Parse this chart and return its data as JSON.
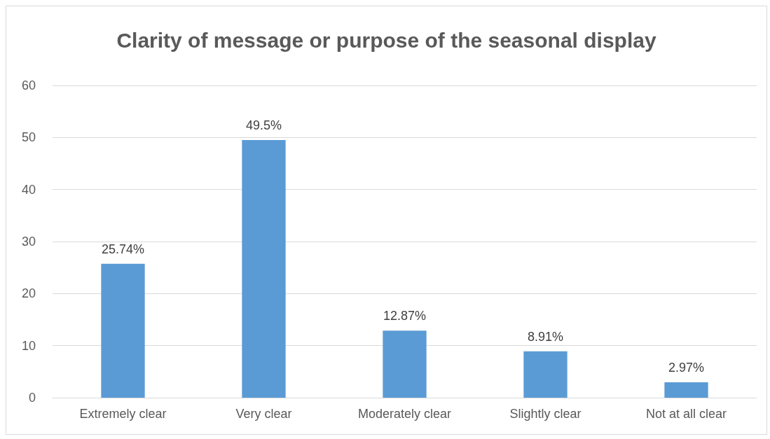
{
  "chart_data": {
    "type": "bar",
    "title": "Clarity of message or purpose of the seasonal display",
    "categories": [
      "Extremely clear",
      "Very clear",
      "Moderately clear",
      "Slightly clear",
      "Not at all clear"
    ],
    "values": [
      25.74,
      49.5,
      12.87,
      8.91,
      2.97
    ],
    "value_labels": [
      "25.74%",
      "49.5%",
      "12.87%",
      "8.91%",
      "2.97%"
    ],
    "color": "#5b9bd5",
    "ylim": [
      0,
      60
    ],
    "yticks": [
      0,
      10,
      20,
      30,
      40,
      50,
      60
    ],
    "grid": "y"
  }
}
